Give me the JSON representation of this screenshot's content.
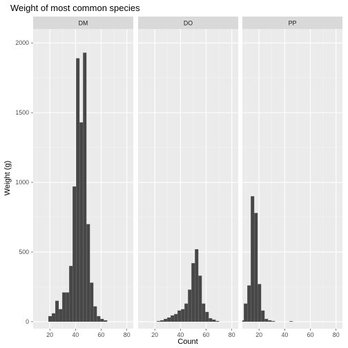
{
  "chart_data": {
    "type": "bar",
    "title": "Weight of most common species",
    "xlabel": "Count",
    "ylabel": "Weight (g)",
    "x_ticks": [
      20,
      40,
      60,
      80
    ],
    "y_ticks": [
      0,
      500,
      1000,
      1500,
      2000
    ],
    "xlim": [
      7,
      85
    ],
    "ylim": [
      -50,
      2100
    ],
    "grid": true,
    "bar_fill": "#474747",
    "panel_background": "#ebebeb",
    "strip_background": "#d9d9d9",
    "bin_width": 2.67,
    "panels": [
      {
        "label": "DM",
        "bins": [
          {
            "x": 20.2,
            "count": 40
          },
          {
            "x": 22.9,
            "count": 60
          },
          {
            "x": 25.6,
            "count": 150
          },
          {
            "x": 28.3,
            "count": 90
          },
          {
            "x": 31.0,
            "count": 210
          },
          {
            "x": 33.7,
            "count": 210
          },
          {
            "x": 36.4,
            "count": 400
          },
          {
            "x": 39.1,
            "count": 970
          },
          {
            "x": 41.8,
            "count": 1890
          },
          {
            "x": 44.5,
            "count": 1430
          },
          {
            "x": 47.2,
            "count": 1930
          },
          {
            "x": 49.9,
            "count": 700
          },
          {
            "x": 52.6,
            "count": 280
          },
          {
            "x": 55.3,
            "count": 110
          },
          {
            "x": 58.0,
            "count": 40
          },
          {
            "x": 60.7,
            "count": 20
          },
          {
            "x": 63.4,
            "count": 10
          }
        ]
      },
      {
        "label": "DO",
        "bins": [
          {
            "x": 22.9,
            "count": 5
          },
          {
            "x": 25.6,
            "count": 10
          },
          {
            "x": 28.3,
            "count": 20
          },
          {
            "x": 31.0,
            "count": 30
          },
          {
            "x": 33.7,
            "count": 45
          },
          {
            "x": 36.4,
            "count": 55
          },
          {
            "x": 39.1,
            "count": 80
          },
          {
            "x": 41.8,
            "count": 90
          },
          {
            "x": 44.5,
            "count": 130
          },
          {
            "x": 47.2,
            "count": 230
          },
          {
            "x": 49.9,
            "count": 420
          },
          {
            "x": 52.6,
            "count": 520
          },
          {
            "x": 55.3,
            "count": 330
          },
          {
            "x": 58.0,
            "count": 130
          },
          {
            "x": 60.7,
            "count": 70
          },
          {
            "x": 63.4,
            "count": 25
          },
          {
            "x": 66.1,
            "count": 15
          },
          {
            "x": 68.8,
            "count": 5
          }
        ]
      },
      {
        "label": "PP",
        "bins": [
          {
            "x": 6.8,
            "count": 10
          },
          {
            "x": 9.5,
            "count": 130
          },
          {
            "x": 12.2,
            "count": 260
          },
          {
            "x": 14.9,
            "count": 900
          },
          {
            "x": 17.6,
            "count": 780
          },
          {
            "x": 20.3,
            "count": 270
          },
          {
            "x": 23.0,
            "count": 80
          },
          {
            "x": 25.7,
            "count": 20
          },
          {
            "x": 28.4,
            "count": 10
          },
          {
            "x": 31.1,
            "count": 5
          },
          {
            "x": 45.0,
            "count": 4
          }
        ]
      }
    ]
  }
}
